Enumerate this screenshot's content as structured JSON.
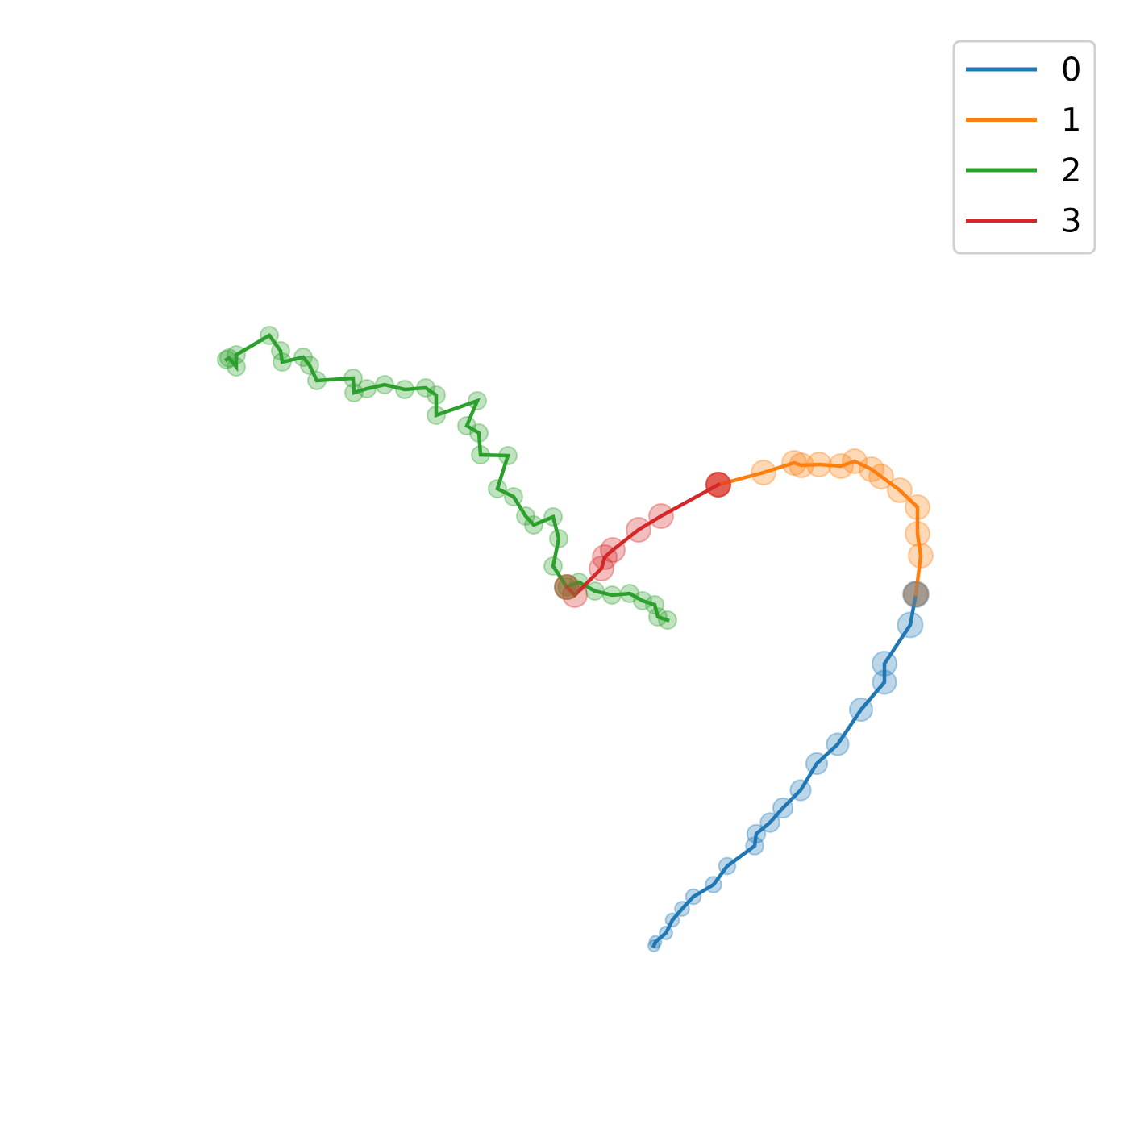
{
  "chart_data": {
    "type": "line",
    "title": "",
    "xlabel": "",
    "ylabel": "",
    "axes_visible": false,
    "grid": false,
    "legend": {
      "placement": "top-right",
      "entries": [
        "0",
        "1",
        "2",
        "3"
      ]
    },
    "junction_marker_color": "#7f7f7f",
    "series": [
      {
        "name": "0",
        "color": "#1f77b4",
        "points": [
          [
            811,
            1173
          ],
          [
            813,
            1168
          ],
          [
            826,
            1157
          ],
          [
            834,
            1141
          ],
          [
            846,
            1127
          ],
          [
            860,
            1112
          ],
          [
            885,
            1097
          ],
          [
            902,
            1074
          ],
          [
            936,
            1049
          ],
          [
            938,
            1034
          ],
          [
            955,
            1020
          ],
          [
            971,
            1002
          ],
          [
            993,
            980
          ],
          [
            1013,
            947
          ],
          [
            1039,
            923
          ],
          [
            1068,
            880
          ],
          [
            1097,
            846
          ],
          [
            1097,
            823
          ],
          [
            1129,
            775
          ],
          [
            1136,
            737
          ]
        ]
      },
      {
        "name": "1",
        "color": "#ff7f0e",
        "points": [
          [
            1136,
            737
          ],
          [
            1142,
            689
          ],
          [
            1138,
            662
          ],
          [
            1138,
            629
          ],
          [
            1116,
            608
          ],
          [
            1093,
            591
          ],
          [
            1081,
            582
          ],
          [
            1060,
            572
          ],
          [
            1043,
            578
          ],
          [
            1016,
            576
          ],
          [
            994,
            577
          ],
          [
            985,
            574
          ],
          [
            947,
            586
          ],
          [
            891,
            601
          ]
        ]
      },
      {
        "name": "2",
        "color": "#2ca02c",
        "points": [
          [
            828,
            769
          ],
          [
            816,
            765
          ],
          [
            812,
            750
          ],
          [
            797,
            745
          ],
          [
            781,
            736
          ],
          [
            759,
            738
          ],
          [
            738,
            733
          ],
          [
            718,
            722
          ],
          [
            703,
            728
          ],
          [
            686,
            702
          ],
          [
            693,
            668
          ],
          [
            686,
            641
          ],
          [
            662,
            651
          ],
          [
            652,
            640
          ],
          [
            637,
            616
          ],
          [
            617,
            606
          ],
          [
            630,
            565
          ],
          [
            596,
            564
          ],
          [
            594,
            537
          ],
          [
            579,
            528
          ],
          [
            592,
            497
          ],
          [
            541,
            515
          ],
          [
            541,
            490
          ],
          [
            528,
            481
          ],
          [
            502,
            483
          ],
          [
            477,
            477
          ],
          [
            455,
            482
          ],
          [
            439,
            487
          ],
          [
            438,
            469
          ],
          [
            393,
            472
          ],
          [
            384,
            453
          ],
          [
            376,
            443
          ],
          [
            350,
            449
          ],
          [
            348,
            435
          ],
          [
            334,
            416
          ],
          [
            293,
            440
          ],
          [
            293,
            455
          ],
          [
            284,
            444
          ],
          [
            281,
            446
          ]
        ]
      },
      {
        "name": "3",
        "color": "#d62728",
        "points": [
          [
            891,
            601
          ],
          [
            820,
            640
          ],
          [
            792,
            657
          ],
          [
            760,
            682
          ],
          [
            750,
            691
          ],
          [
            746,
            705
          ],
          [
            713,
            738
          ],
          [
            703,
            728
          ]
        ]
      }
    ]
  }
}
